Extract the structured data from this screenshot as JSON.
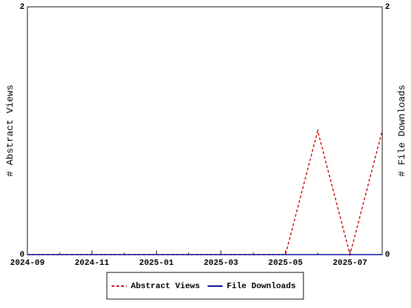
{
  "chart_data": {
    "type": "line",
    "categories": [
      "2024-09",
      null,
      "2024-11",
      null,
      "2025-01",
      null,
      "2025-03",
      null,
      "2025-05",
      null,
      "2025-07",
      null
    ],
    "y_label": "# Abstract Views",
    "y2_label": "# File Downloads",
    "series": [
      {
        "name": "Abstract Views",
        "color": "#cc0000",
        "dashed": true,
        "values": [
          0,
          0,
          0,
          0,
          0,
          0,
          0,
          0,
          0,
          1,
          0,
          1
        ]
      },
      {
        "name": "File Downloads",
        "color": "#000099",
        "dashed": false,
        "axis": "y2",
        "values": [
          0,
          0,
          0,
          0,
          0,
          0,
          0,
          0,
          0,
          0,
          0,
          0
        ]
      }
    ],
    "ylim": [
      0,
      2
    ],
    "yticks": [
      0,
      2
    ],
    "y2lim": [
      0,
      2
    ],
    "y2ticks": [
      0,
      2
    ],
    "legend": "bottom",
    "grid": false
  }
}
